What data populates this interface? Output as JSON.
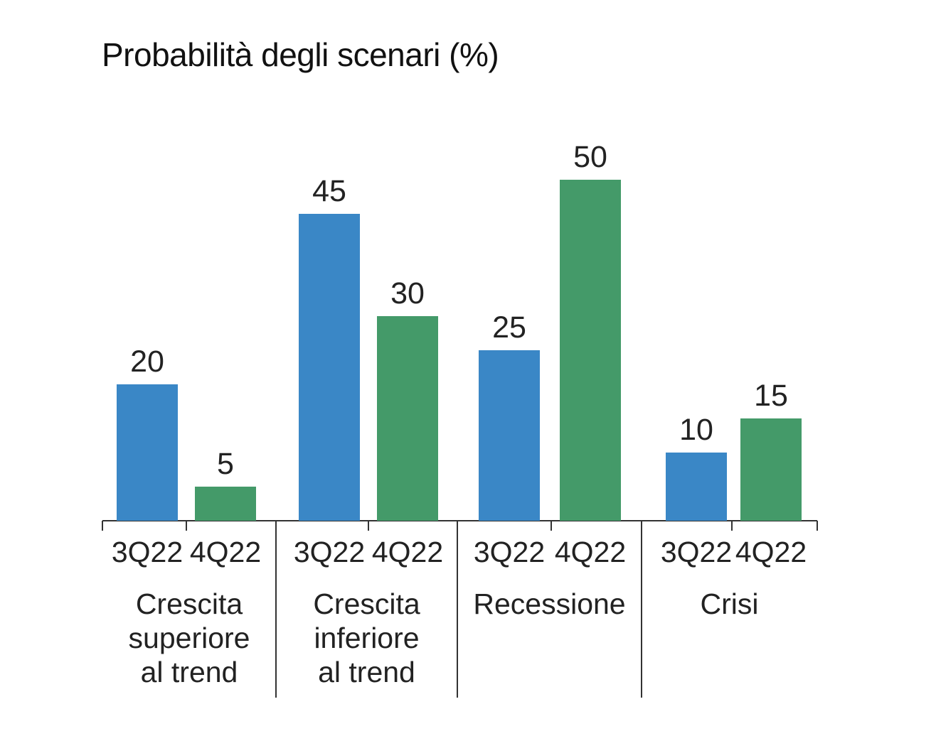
{
  "chart_data": {
    "type": "bar",
    "title": "Probabilità degli scenari (%)",
    "xlabel": "",
    "ylabel": "",
    "ylim": [
      0,
      55
    ],
    "grid": false,
    "legend": "none",
    "groups": [
      {
        "label_lines": [
          "Crescita",
          "superiore",
          "al trend"
        ],
        "bars": [
          {
            "period": "3Q22",
            "value": 20
          },
          {
            "period": "4Q22",
            "value": 5
          }
        ]
      },
      {
        "label_lines": [
          "Crescita",
          "inferiore",
          "al trend"
        ],
        "bars": [
          {
            "period": "3Q22",
            "value": 45
          },
          {
            "period": "4Q22",
            "value": 30
          }
        ]
      },
      {
        "label_lines": [
          "Recessione"
        ],
        "bars": [
          {
            "period": "3Q22",
            "value": 25
          },
          {
            "period": "4Q22",
            "value": 50
          }
        ]
      },
      {
        "label_lines": [
          "Crisi"
        ],
        "bars": [
          {
            "period": "3Q22",
            "value": 10
          },
          {
            "period": "4Q22",
            "value": 15
          }
        ]
      }
    ],
    "colors": {
      "3Q22": "#3a87c6",
      "4Q22": "#449a69"
    }
  }
}
